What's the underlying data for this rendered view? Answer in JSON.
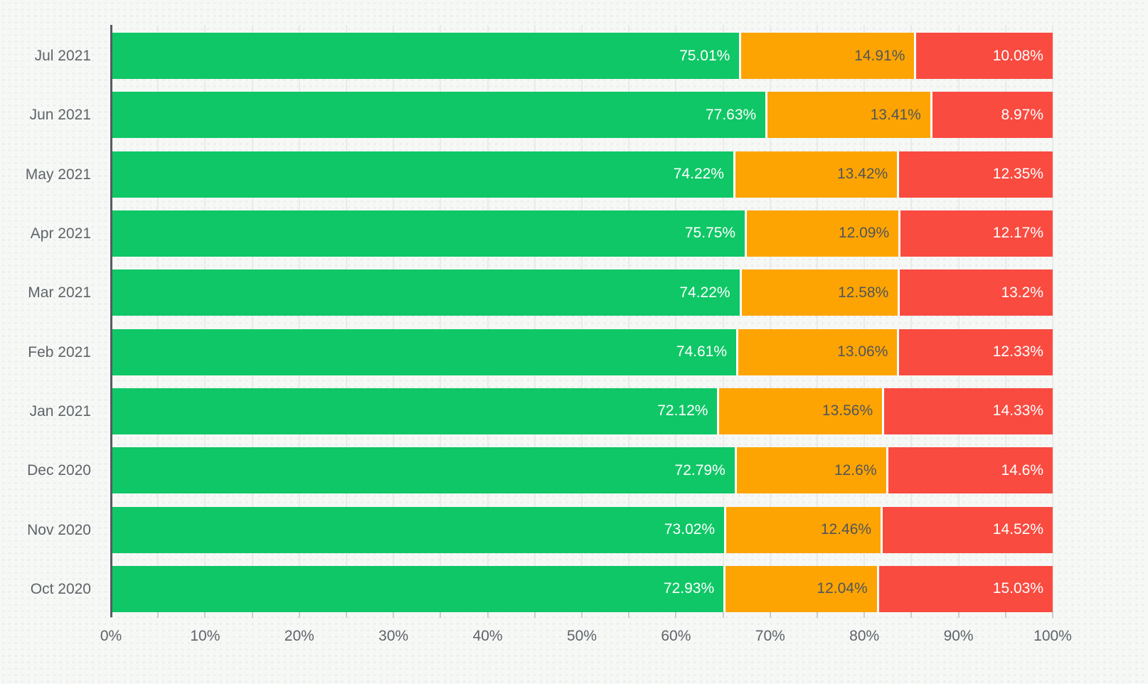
{
  "chart_data": {
    "type": "bar",
    "orientation": "horizontal",
    "stacked": true,
    "title": "",
    "xlabel": "",
    "ylabel": "",
    "xlim": [
      0,
      100
    ],
    "x_unit": "%",
    "x_ticks": [
      "0%",
      "10%",
      "20%",
      "30%",
      "40%",
      "50%",
      "60%",
      "70%",
      "80%",
      "90%",
      "100%"
    ],
    "x_minor_tick_step_pct": 5,
    "grid": "vertical gridlines every 5%",
    "legend_position": "none",
    "categories": [
      "Jul 2021",
      "Jun 2021",
      "May 2021",
      "Apr 2021",
      "Mar 2021",
      "Feb 2021",
      "Jan 2021",
      "Dec 2020",
      "Nov 2020",
      "Oct 2020"
    ],
    "series": [
      {
        "name": "green",
        "color": "#0fc766",
        "text_color": "#ffffff",
        "values": [
          75.01,
          77.63,
          74.22,
          75.75,
          74.22,
          74.61,
          72.12,
          72.79,
          73.02,
          72.93
        ],
        "labels": [
          "75.01%",
          "77.63%",
          "74.22%",
          "75.75%",
          "74.22%",
          "74.61%",
          "72.12%",
          "72.79%",
          "73.02%",
          "72.93%"
        ]
      },
      {
        "name": "orange",
        "color": "#fda402",
        "text_color": "#50555b",
        "values": [
          14.91,
          13.41,
          13.42,
          12.09,
          12.58,
          13.06,
          13.56,
          12.6,
          12.46,
          12.04
        ],
        "labels": [
          "14.91%",
          "13.41%",
          "13.42%",
          "12.09%",
          "12.58%",
          "13.06%",
          "13.56%",
          "12.6%",
          "12.46%",
          "12.04%"
        ]
      },
      {
        "name": "red",
        "color": "#f94b40",
        "text_color": "#ffffff",
        "values": [
          10.08,
          8.97,
          12.35,
          12.17,
          13.2,
          12.33,
          14.33,
          14.6,
          14.52,
          15.03
        ],
        "labels": [
          "10.08%",
          "8.97%",
          "12.35%",
          "12.17%",
          "13.2%",
          "12.33%",
          "14.33%",
          "14.6%",
          "14.52%",
          "15.03%"
        ]
      }
    ]
  },
  "colors": {
    "background": "#f6f8f6",
    "background_dots": "#e0e4e1",
    "gridline": "#e8ebe9",
    "axis_line": "#575b60",
    "tick": "#c9cecb",
    "axis_label_text": "#5e6368",
    "category_label_text": "#5f6469",
    "segment_gap": "#ffffff"
  }
}
